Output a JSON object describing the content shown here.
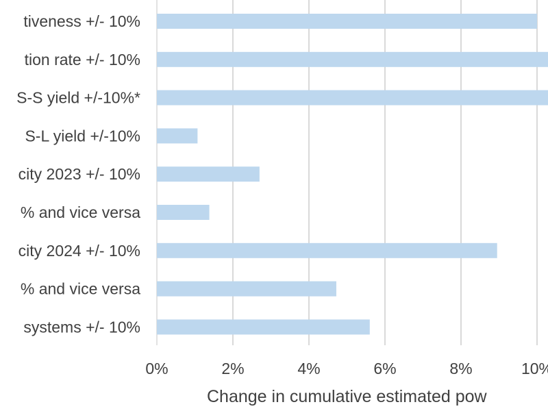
{
  "chart_data": {
    "type": "bar",
    "orientation": "horizontal",
    "categories": [
      "tiveness +/- 10%",
      "tion rate +/- 10%",
      "S-S yield +/-10%*",
      "S-L yield +/-10%",
      "city 2023 +/- 10%",
      "% and vice versa",
      "city 2024 +/- 10%",
      "% and vice versa",
      "systems +/- 10%"
    ],
    "values": [
      10.0,
      11.0,
      11.0,
      1.07,
      2.7,
      1.38,
      8.95,
      4.72,
      5.6
    ],
    "xlabel": "Change in cumulative estimated pow",
    "ylabel": "",
    "title": "",
    "xlim": [
      0,
      10
    ],
    "xticks": [
      0,
      2,
      4,
      6,
      8,
      10
    ],
    "tick_labels": [
      "0%",
      "2%",
      "4%",
      "6%",
      "8%",
      "10%"
    ],
    "grid": "vertical",
    "bar_color": "#bdd7ee",
    "grid_color": "#d9d9d9",
    "text_color": "#404040"
  }
}
